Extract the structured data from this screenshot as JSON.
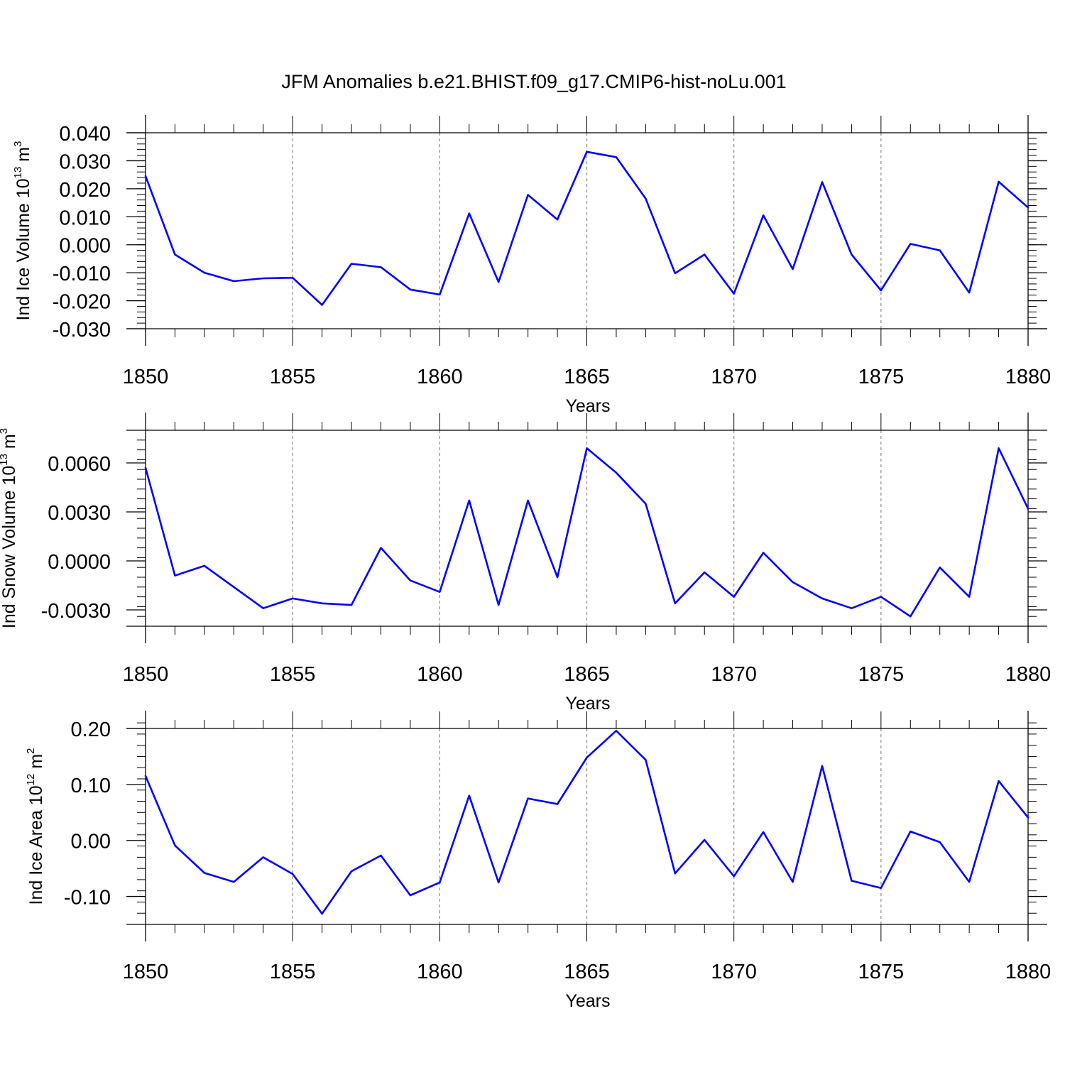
{
  "figure_title": "JFM Anomalies b.e21.BHIST.f09_g17.CMIP6-hist-noLu.001",
  "line_color": "#0000ff",
  "chart_data": [
    {
      "type": "line",
      "title": "JFM Anomalies b.e21.BHIST.f09_g17.CMIP6-hist-noLu.001",
      "xlabel": "Years",
      "ylabel": {
        "text": "Ind Ice Volume 10",
        "exp": "13",
        "unit": " m",
        "unit_exp": "3"
      },
      "xlim": [
        1850,
        1880
      ],
      "ylim": [
        -0.03,
        0.04
      ],
      "x_ticks": [
        1850,
        1855,
        1860,
        1865,
        1870,
        1875,
        1880
      ],
      "x_tick_labels": [
        "1850",
        "1855",
        "1860",
        "1865",
        "1870",
        "1875",
        "1880"
      ],
      "y_ticks": [
        -0.03,
        -0.02,
        -0.01,
        0.0,
        0.01,
        0.02,
        0.03,
        0.04
      ],
      "y_tick_labels": [
        "-0.030",
        "-0.020",
        "-0.010",
        "0.000",
        "0.010",
        "0.020",
        "0.030",
        "0.040"
      ],
      "y_minor_step": 0.002,
      "grid": "vertical dashed at major x ticks",
      "x": [
        1850,
        1851,
        1852,
        1853,
        1854,
        1855,
        1856,
        1857,
        1858,
        1859,
        1860,
        1861,
        1862,
        1863,
        1864,
        1865,
        1866,
        1867,
        1868,
        1869,
        1870,
        1871,
        1872,
        1873,
        1874,
        1875,
        1876,
        1877,
        1878,
        1879,
        1880
      ],
      "y": [
        0.0245,
        -0.0035,
        -0.01,
        -0.013,
        -0.012,
        -0.0118,
        -0.0215,
        -0.0068,
        -0.008,
        -0.016,
        -0.0178,
        0.0112,
        -0.0133,
        0.0178,
        0.009,
        0.0332,
        0.0313,
        0.0165,
        -0.0102,
        -0.0035,
        -0.0175,
        0.0105,
        -0.0087,
        0.0224,
        -0.0035,
        -0.0163,
        0.0003,
        -0.002,
        -0.0171,
        0.0225,
        0.0133
      ]
    },
    {
      "type": "line",
      "xlabel": "Years",
      "ylabel": {
        "text": "Ind Snow Volume 10",
        "exp": "13",
        "unit": " m",
        "unit_exp": "3"
      },
      "xlim": [
        1850,
        1880
      ],
      "ylim": [
        -0.004,
        0.008
      ],
      "x_ticks": [
        1850,
        1855,
        1860,
        1865,
        1870,
        1875,
        1880
      ],
      "x_tick_labels": [
        "1850",
        "1855",
        "1860",
        "1865",
        "1870",
        "1875",
        "1880"
      ],
      "y_ticks": [
        -0.003,
        0.0,
        0.003,
        0.006
      ],
      "y_tick_labels": [
        "-0.0030",
        "0.0000",
        "0.0030",
        "0.0060"
      ],
      "y_minor_step": 0.0006,
      "grid": "vertical dashed at major x ticks",
      "x": [
        1850,
        1851,
        1852,
        1853,
        1854,
        1855,
        1856,
        1857,
        1858,
        1859,
        1860,
        1861,
        1862,
        1863,
        1864,
        1865,
        1866,
        1867,
        1868,
        1869,
        1870,
        1871,
        1872,
        1873,
        1874,
        1875,
        1876,
        1877,
        1878,
        1879,
        1880
      ],
      "y": [
        0.0057,
        -0.0009,
        -0.0003,
        -0.0016,
        -0.0029,
        -0.0023,
        -0.0026,
        -0.0027,
        0.0008,
        -0.0012,
        -0.0019,
        0.0037,
        -0.0027,
        0.0037,
        -0.001,
        0.0069,
        0.0054,
        0.0035,
        -0.0026,
        -0.0007,
        -0.0022,
        0.0005,
        -0.0013,
        -0.0023,
        -0.0029,
        -0.0022,
        -0.0034,
        -0.0004,
        -0.0022,
        0.0069,
        0.0032
      ]
    },
    {
      "type": "line",
      "xlabel": "Years",
      "ylabel": {
        "text": "Ind Ice Area 10",
        "exp": "12",
        "unit": " m",
        "unit_exp": "2"
      },
      "xlim": [
        1850,
        1880
      ],
      "ylim": [
        -0.15,
        0.2
      ],
      "x_ticks": [
        1850,
        1855,
        1860,
        1865,
        1870,
        1875,
        1880
      ],
      "x_tick_labels": [
        "1850",
        "1855",
        "1860",
        "1865",
        "1870",
        "1875",
        "1880"
      ],
      "y_ticks": [
        -0.1,
        0.0,
        0.1,
        0.2
      ],
      "y_tick_labels": [
        "-0.10",
        "0.00",
        "0.10",
        "0.20"
      ],
      "y_minor_step": 0.02,
      "grid": "vertical dashed at major x ticks",
      "x": [
        1850,
        1851,
        1852,
        1853,
        1854,
        1855,
        1856,
        1857,
        1858,
        1859,
        1860,
        1861,
        1862,
        1863,
        1864,
        1865,
        1866,
        1867,
        1868,
        1869,
        1870,
        1871,
        1872,
        1873,
        1874,
        1875,
        1876,
        1877,
        1878,
        1879,
        1880
      ],
      "y": [
        0.115,
        -0.009,
        -0.058,
        -0.074,
        -0.03,
        -0.06,
        -0.131,
        -0.055,
        -0.027,
        -0.098,
        -0.075,
        0.08,
        -0.075,
        0.075,
        0.065,
        0.148,
        0.196,
        0.144,
        -0.059,
        0.001,
        -0.064,
        0.015,
        -0.074,
        0.133,
        -0.072,
        -0.085,
        0.016,
        -0.003,
        -0.074,
        0.106,
        0.041
      ]
    }
  ]
}
